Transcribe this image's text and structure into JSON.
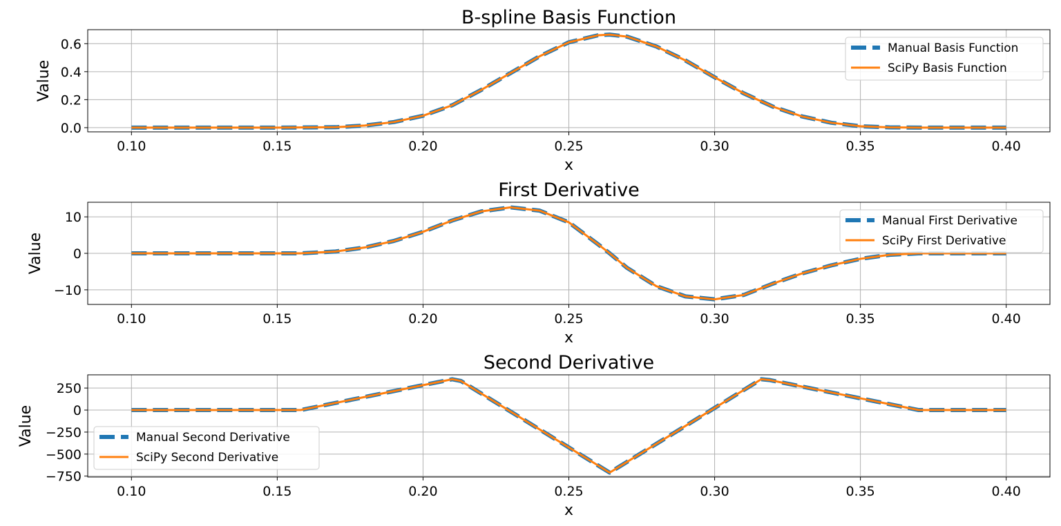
{
  "colors": {
    "manual": "#1f77b4",
    "scipy": "#ff7f0e",
    "grid": "#b0b0b0"
  },
  "chart_data": [
    {
      "type": "line",
      "title": "B-spline Basis Function",
      "xlabel": "x",
      "ylabel": "Value",
      "xlim": [
        0.085,
        0.415
      ],
      "ylim": [
        -0.03,
        0.7
      ],
      "xticks": [
        0.1,
        0.15,
        0.2,
        0.25,
        0.3,
        0.35,
        0.4
      ],
      "xtick_labels": [
        "0.10",
        "0.15",
        "0.20",
        "0.25",
        "0.30",
        "0.35",
        "0.40"
      ],
      "yticks": [
        0.0,
        0.2,
        0.4,
        0.6
      ],
      "ytick_labels": [
        "0.0",
        "0.2",
        "0.4",
        "0.6"
      ],
      "grid": true,
      "legend_position": "upper right",
      "series": [
        {
          "name": "Manual Basis Function",
          "style": "dashed",
          "x": [
            0.1,
            0.15,
            0.17,
            0.18,
            0.19,
            0.2,
            0.21,
            0.22,
            0.23,
            0.24,
            0.25,
            0.26,
            0.264,
            0.27,
            0.28,
            0.29,
            0.3,
            0.31,
            0.32,
            0.33,
            0.34,
            0.35,
            0.36,
            0.37,
            0.4
          ],
          "y": [
            0.0,
            0.0,
            0.003,
            0.015,
            0.04,
            0.085,
            0.16,
            0.27,
            0.39,
            0.51,
            0.61,
            0.66,
            0.665,
            0.65,
            0.58,
            0.48,
            0.36,
            0.245,
            0.15,
            0.08,
            0.035,
            0.01,
            0.002,
            0.0,
            0.0
          ]
        },
        {
          "name": "SciPy Basis Function",
          "style": "solid",
          "x": [
            0.1,
            0.15,
            0.17,
            0.18,
            0.19,
            0.2,
            0.21,
            0.22,
            0.23,
            0.24,
            0.25,
            0.26,
            0.264,
            0.27,
            0.28,
            0.29,
            0.3,
            0.31,
            0.32,
            0.33,
            0.34,
            0.35,
            0.36,
            0.37,
            0.4
          ],
          "y": [
            0.0,
            0.0,
            0.003,
            0.015,
            0.04,
            0.085,
            0.16,
            0.27,
            0.39,
            0.51,
            0.61,
            0.66,
            0.665,
            0.65,
            0.58,
            0.48,
            0.36,
            0.245,
            0.15,
            0.08,
            0.035,
            0.01,
            0.002,
            0.0,
            0.0
          ]
        }
      ]
    },
    {
      "type": "line",
      "title": "First Derivative",
      "xlabel": "x",
      "ylabel": "Value",
      "xlim": [
        0.085,
        0.415
      ],
      "ylim": [
        -14,
        14
      ],
      "xticks": [
        0.1,
        0.15,
        0.2,
        0.25,
        0.3,
        0.35,
        0.4
      ],
      "xtick_labels": [
        "0.10",
        "0.15",
        "0.20",
        "0.25",
        "0.30",
        "0.35",
        "0.40"
      ],
      "yticks": [
        -10,
        0,
        10
      ],
      "ytick_labels": [
        "−10",
        "0",
        "10"
      ],
      "grid": true,
      "legend_position": "upper right",
      "series": [
        {
          "name": "Manual First Derivative",
          "style": "dashed",
          "x": [
            0.1,
            0.158,
            0.17,
            0.18,
            0.19,
            0.2,
            0.21,
            0.22,
            0.23,
            0.24,
            0.25,
            0.26,
            0.264,
            0.27,
            0.28,
            0.29,
            0.3,
            0.31,
            0.32,
            0.33,
            0.34,
            0.35,
            0.36,
            0.37,
            0.4
          ],
          "y": [
            0.0,
            0.0,
            0.5,
            1.6,
            3.4,
            5.9,
            9.0,
            11.5,
            12.6,
            11.7,
            8.5,
            2.5,
            0.0,
            -4.0,
            -9.0,
            -11.8,
            -12.6,
            -11.4,
            -8.3,
            -5.5,
            -3.3,
            -1.5,
            -0.4,
            0.0,
            0.0
          ]
        },
        {
          "name": "SciPy First Derivative",
          "style": "solid",
          "x": [
            0.1,
            0.158,
            0.17,
            0.18,
            0.19,
            0.2,
            0.21,
            0.22,
            0.23,
            0.24,
            0.25,
            0.26,
            0.264,
            0.27,
            0.28,
            0.29,
            0.3,
            0.31,
            0.32,
            0.33,
            0.34,
            0.35,
            0.36,
            0.37,
            0.4
          ],
          "y": [
            0.0,
            0.0,
            0.5,
            1.6,
            3.4,
            5.9,
            9.0,
            11.5,
            12.6,
            11.7,
            8.5,
            2.5,
            0.0,
            -4.0,
            -9.0,
            -11.8,
            -12.6,
            -11.4,
            -8.3,
            -5.5,
            -3.3,
            -1.5,
            -0.4,
            0.0,
            0.0
          ]
        }
      ]
    },
    {
      "type": "line",
      "title": "Second Derivative",
      "xlabel": "x",
      "ylabel": "Value",
      "xlim": [
        0.085,
        0.415
      ],
      "ylim": [
        -760,
        400
      ],
      "xticks": [
        0.1,
        0.15,
        0.2,
        0.25,
        0.3,
        0.35,
        0.4
      ],
      "xtick_labels": [
        "0.10",
        "0.15",
        "0.20",
        "0.25",
        "0.30",
        "0.35",
        "0.40"
      ],
      "yticks": [
        -750,
        -500,
        -250,
        0,
        250
      ],
      "ytick_labels": [
        "−750",
        "−500",
        "−250",
        "0",
        "250"
      ],
      "grid": true,
      "legend_position": "lower left",
      "series": [
        {
          "name": "Manual Second Derivative",
          "style": "dashed",
          "x": [
            0.1,
            0.158,
            0.21,
            0.213,
            0.264,
            0.316,
            0.319,
            0.37,
            0.4
          ],
          "y": [
            0,
            0,
            350,
            330,
            -710,
            350,
            340,
            0,
            0
          ]
        },
        {
          "name": "SciPy Second Derivative",
          "style": "solid",
          "x": [
            0.1,
            0.158,
            0.21,
            0.213,
            0.264,
            0.316,
            0.319,
            0.37,
            0.4
          ],
          "y": [
            0,
            0,
            350,
            330,
            -710,
            350,
            340,
            0,
            0
          ]
        }
      ]
    }
  ]
}
